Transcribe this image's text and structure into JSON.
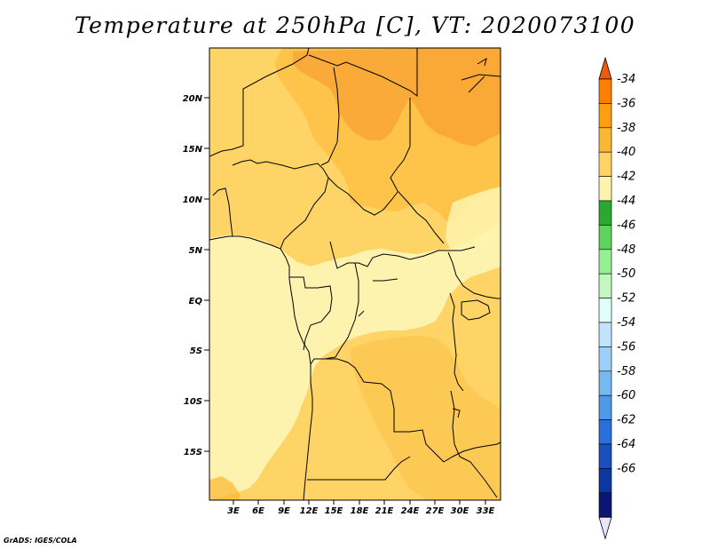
{
  "title": "Temperature at 250hPa [C], VT: 2020073100",
  "footer": "GrADS: IGES/COLA",
  "map": {
    "lat_labels": [
      "20N",
      "15N",
      "10N",
      "5N",
      "EQ",
      "5S",
      "10S",
      "15S"
    ],
    "lon_labels": [
      "3E",
      "6E",
      "9E",
      "12E",
      "15E",
      "18E",
      "21E",
      "24E",
      "27E",
      "30E",
      "33E"
    ]
  },
  "colorbar": {
    "labels": [
      "-34",
      "-36",
      "-38",
      "-40",
      "-42",
      "-44",
      "-46",
      "-48",
      "-50",
      "-52",
      "-54",
      "-56",
      "-58",
      "-60",
      "-62",
      "-64",
      "-66"
    ],
    "colors": [
      "#f05a0a",
      "#ff7f00",
      "#ff9f10",
      "#fbb732",
      "#fed467",
      "#fef3ae",
      "#2aa830",
      "#5dd35d",
      "#96ef91",
      "#c4f7c0",
      "#e0fff9",
      "#bfe4fb",
      "#9cd0f7",
      "#78b8f1",
      "#4d99ea",
      "#2a6fdb",
      "#1a4fbd",
      "#0e36a3",
      "#0a1774",
      "#e9e6fa"
    ]
  },
  "chart_data": {
    "type": "heatmap",
    "title": "Temperature at 250hPa [C], VT: 2020073100",
    "levels": [
      -66,
      -64,
      -62,
      -60,
      -58,
      -56,
      -54,
      -52,
      -50,
      -48,
      -46,
      -44,
      -42,
      -40,
      -38,
      -36,
      -34
    ],
    "x_ticks": [
      "3E",
      "6E",
      "9E",
      "12E",
      "15E",
      "18E",
      "21E",
      "24E",
      "27E",
      "30E",
      "33E"
    ],
    "y_ticks": [
      "20N",
      "15N",
      "10N",
      "5N",
      "EQ",
      "5S",
      "10S",
      "15S"
    ]
  }
}
